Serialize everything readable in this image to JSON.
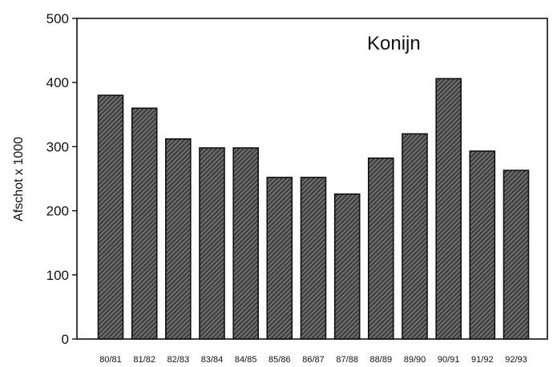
{
  "chart_data": {
    "type": "bar",
    "title": "Konijn",
    "xlabel": "",
    "ylabel": "Afschot x 1000",
    "ylim": [
      0,
      500
    ],
    "yticks": [
      0,
      100,
      200,
      300,
      400,
      500
    ],
    "grid": false,
    "categories": [
      "80/81",
      "81/82",
      "82/83",
      "83/84",
      "84/85",
      "85/86",
      "86/87",
      "87/88",
      "88/89",
      "89/90",
      "90/91",
      "91/92",
      "92/93"
    ],
    "values": [
      380,
      360,
      312,
      298,
      298,
      252,
      252,
      226,
      282,
      320,
      406,
      293,
      263
    ],
    "bar_fill": "#444444",
    "bar_hatch": "#b0b0b0",
    "bar_stroke": "#111111",
    "bar_pattern": "diagonal-hatch"
  }
}
